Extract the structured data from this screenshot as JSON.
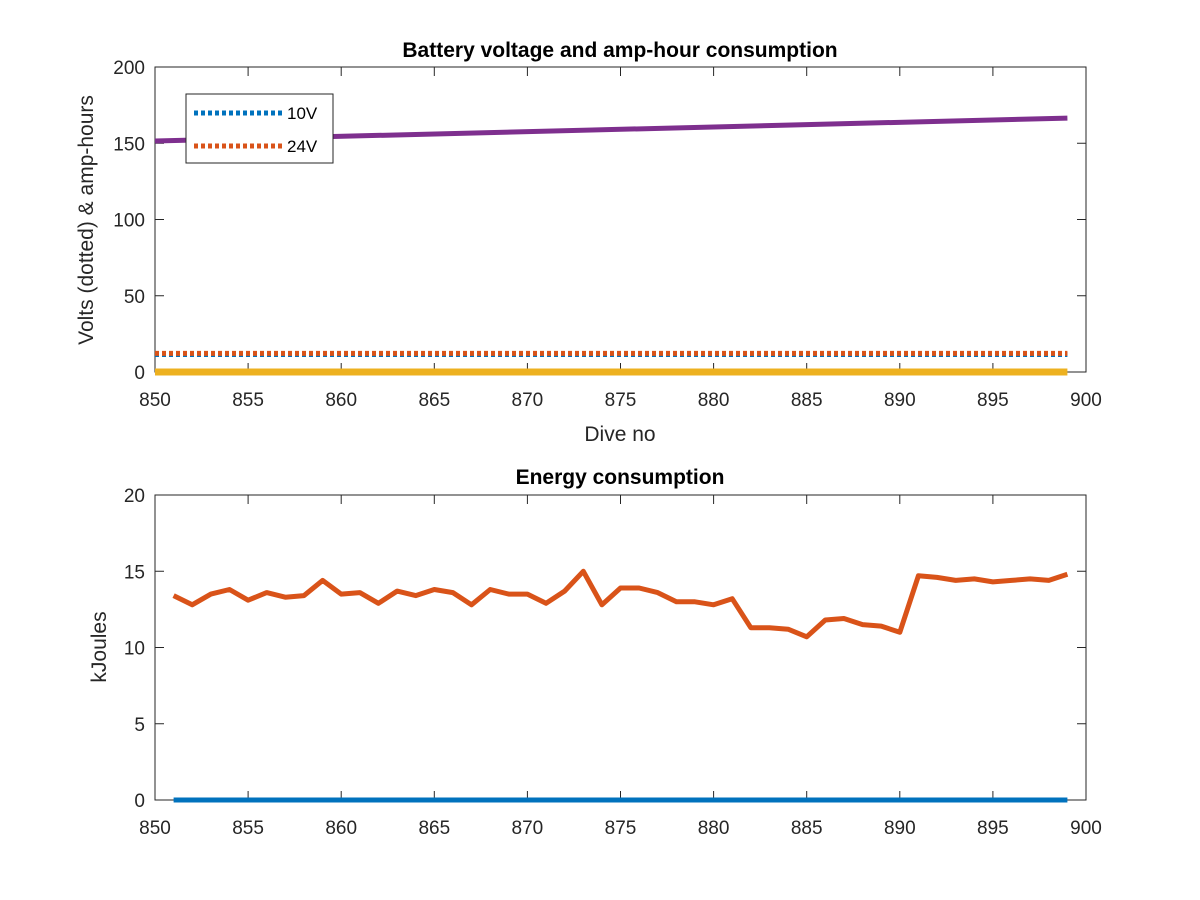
{
  "chart_data": [
    {
      "type": "line",
      "title": "Battery voltage and amp-hour consumption",
      "xlabel": "Dive no",
      "ylabel": "Volts (dotted) & amp-hours",
      "xlim": [
        850,
        900
      ],
      "ylim": [
        0,
        200
      ],
      "xticks": [
        "850",
        "855",
        "860",
        "865",
        "870",
        "875",
        "880",
        "885",
        "890",
        "895",
        "900"
      ],
      "yticks": [
        "0",
        "50",
        "100",
        "150",
        "200"
      ],
      "legend_position": "top-left",
      "series": [
        {
          "name": "10V",
          "style": "dotted",
          "color": "#0072BD",
          "x": [
            850,
            899
          ],
          "values": [
            11.5,
            11.5
          ]
        },
        {
          "name": "24V",
          "style": "dotted",
          "color": "#D95319",
          "x": [
            850,
            899
          ],
          "values": [
            12.2,
            12.2
          ]
        },
        {
          "style": "solid",
          "color": "#7E2F8E",
          "x": [
            850,
            899
          ],
          "values": [
            151.5,
            166.5
          ]
        },
        {
          "style": "solid",
          "color": "#EDB120",
          "x": [
            850,
            899
          ],
          "values": [
            0,
            0
          ]
        }
      ]
    },
    {
      "type": "line",
      "title": "Energy consumption",
      "xlabel": "",
      "ylabel": "kJoules",
      "xlim": [
        850,
        900
      ],
      "ylim": [
        0,
        20
      ],
      "xticks": [
        "850",
        "855",
        "860",
        "865",
        "870",
        "875",
        "880",
        "885",
        "890",
        "895",
        "900"
      ],
      "yticks": [
        "0",
        "5",
        "10",
        "15",
        "20"
      ],
      "series": [
        {
          "style": "solid",
          "color": "#D95319",
          "x": [
            851,
            852,
            853,
            854,
            855,
            856,
            857,
            858,
            859,
            860,
            861,
            862,
            863,
            864,
            865,
            866,
            867,
            868,
            869,
            870,
            871,
            872,
            873,
            874,
            875,
            876,
            877,
            878,
            879,
            880,
            881,
            882,
            883,
            884,
            885,
            886,
            887,
            888,
            889,
            890,
            891,
            892,
            893,
            894,
            895,
            896,
            897,
            898,
            899
          ],
          "values": [
            13.4,
            12.8,
            13.5,
            13.8,
            13.1,
            13.6,
            13.3,
            13.4,
            14.4,
            13.5,
            13.6,
            12.9,
            13.7,
            13.4,
            13.8,
            13.6,
            12.8,
            13.8,
            13.5,
            13.5,
            12.9,
            13.7,
            15.0,
            12.8,
            13.9,
            13.9,
            13.6,
            13.0,
            13.0,
            12.8,
            13.2,
            11.3,
            11.3,
            11.2,
            10.7,
            11.8,
            11.9,
            11.5,
            11.4,
            11.0,
            14.7,
            14.6,
            14.4,
            14.5,
            14.3,
            14.4,
            14.5,
            14.4,
            14.8
          ]
        },
        {
          "style": "solid",
          "color": "#0072BD",
          "x": [
            851,
            899
          ],
          "values": [
            0,
            0
          ]
        }
      ]
    }
  ]
}
